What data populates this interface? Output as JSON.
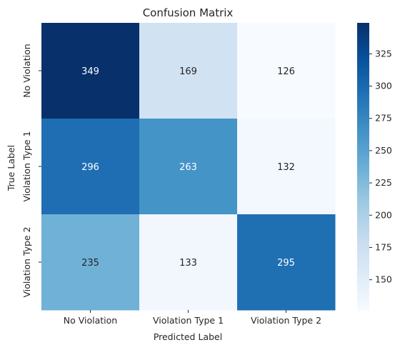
{
  "chart_data": {
    "type": "heatmap",
    "title": "Confusion Matrix",
    "xlabel": "Predicted Label",
    "ylabel": "True Label",
    "x_categories": [
      "No Violation",
      "Violation Type 1",
      "Violation Type 2"
    ],
    "y_categories": [
      "No Violation",
      "Violation Type 1",
      "Violation Type 2"
    ],
    "values": [
      [
        349,
        169,
        126
      ],
      [
        296,
        263,
        132
      ],
      [
        235,
        133,
        295
      ]
    ],
    "colormap": "Blues",
    "color_range": [
      126,
      349
    ],
    "colorbar_ticks": [
      "150",
      "175",
      "200",
      "225",
      "250",
      "275",
      "300",
      "325"
    ],
    "annotation_light_color": "#ffffff",
    "annotation_dark_color": "#262626",
    "colormap_stops": [
      "#f7fbff",
      "#deebf7",
      "#c6dbef",
      "#9ecae1",
      "#6baed6",
      "#4292c6",
      "#2171b5",
      "#08519c",
      "#08306b"
    ]
  }
}
